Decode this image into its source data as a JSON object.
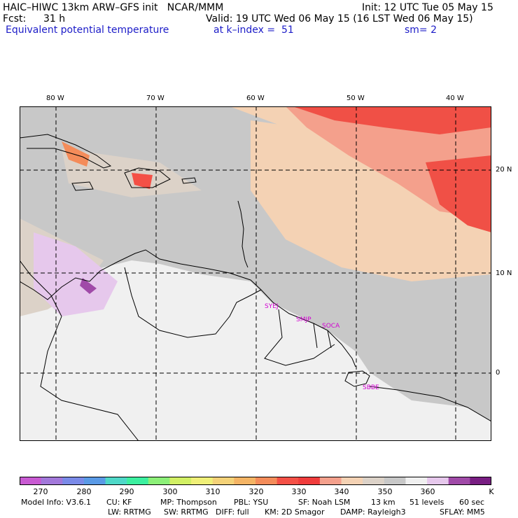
{
  "header": {
    "model_line": "HAIC–HIWC 13km ARW–GFS init   NCAR/MMM",
    "init": "Init: 12 UTC Tue 05 May 15",
    "fcst_label": "Fcst:",
    "fcst_value": "31 h",
    "valid": "Valid: 19 UTC Wed 06 May 15 (16 LST Wed 06 May 15)",
    "field": "Equivalent potential temperature",
    "level": "at k–index =  51",
    "smooth": "sm= 2"
  },
  "map": {
    "lon_labels": [
      "80 W",
      "70 W",
      "60 W",
      "50 W",
      "40 W"
    ],
    "lat_labels": [
      "20 N",
      "10 N",
      "0"
    ],
    "stations": [
      "SYEJ",
      "SMJP",
      "SOCA",
      "SBBE"
    ]
  },
  "colorbar": {
    "labels": [
      "270",
      "280",
      "290",
      "300",
      "310",
      "320",
      "330",
      "340",
      "350",
      "360",
      "K"
    ],
    "colors": [
      "#c85ad2",
      "#a278da",
      "#7a8ae8",
      "#5a9ae6",
      "#4ed8c8",
      "#3cf0a0",
      "#8cf078",
      "#d2f064",
      "#f0f078",
      "#f4d278",
      "#f4b464",
      "#f48c5a",
      "#f45046",
      "#f03c3c",
      "#f4a08c",
      "#f4d2b4",
      "#dcd2c8",
      "#c8c8c8",
      "#f0f0f0",
      "#e6c8ec",
      "#a04aa8",
      "#781e82"
    ]
  },
  "footer": {
    "line1": [
      "Model Info: V3.6.1",
      "CU: KF",
      "MP: Thompson",
      "PBL: YSU",
      "SF: Noah LSM",
      "13 km",
      "51 levels",
      "60 sec"
    ],
    "line2": [
      "LW: RRTMG",
      "SW: RRTMG",
      "DIFF: full",
      "KM: 2D Smagor",
      "DAMP: Rayleigh3",
      "SFLAY: MM5"
    ]
  }
}
